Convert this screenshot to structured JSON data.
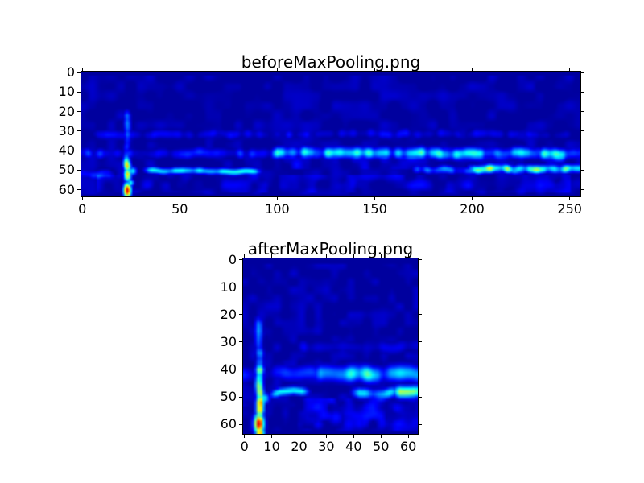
{
  "figure": {
    "background": "#ffffff",
    "text_color": "#000000",
    "spine_color": "#000000"
  },
  "colors": {
    "background_navy": "#000084",
    "feature_blue": "#0000ff",
    "hot_peak_red": "#d80000",
    "hot_ring_yellow": "#ffd200"
  },
  "chart_data": [
    {
      "type": "heatmap",
      "title": "beforeMaxPooling.png",
      "xlabel": "",
      "ylabel": "",
      "colormap": "jet",
      "grid": {
        "cols": 256,
        "rows": 64
      },
      "x_range": [
        0,
        255
      ],
      "y_range": [
        0,
        63
      ],
      "x_ticks": [
        0,
        50,
        100,
        150,
        200,
        250
      ],
      "y_ticks": [
        0,
        10,
        20,
        30,
        40,
        50,
        60
      ],
      "background_level": 0.03,
      "features": [
        {
          "kind": "speckle",
          "x0": 0,
          "x1": 255,
          "y0": 2,
          "y1": 62,
          "i": 0.05,
          "scale": 5,
          "seed": 101
        },
        {
          "kind": "hband",
          "y": 31.5,
          "x0": 4,
          "x1": 252,
          "i": 0.085,
          "sigma": 1.7,
          "noise": 0.7,
          "seed": 102
        },
        {
          "kind": "hband",
          "y": 41.2,
          "x0": 0,
          "x1": 255,
          "i": 0.13,
          "sigma": 1.8,
          "noise": 0.6,
          "seed": 103
        },
        {
          "kind": "hband",
          "y": 41.4,
          "x0": 96,
          "x1": 255,
          "i": 0.3,
          "sigma": 1.9,
          "noise": 0.55,
          "seed": 104
        },
        {
          "kind": "hband",
          "y": 50.6,
          "x0": 30,
          "x1": 93,
          "i": 0.3,
          "sigma": 1.15,
          "noise": 0.35,
          "seed": 105
        },
        {
          "kind": "hband",
          "y": 49.8,
          "x0": 168,
          "x1": 255,
          "i": 0.2,
          "sigma": 1.3,
          "noise": 0.5,
          "seed": 106
        },
        {
          "kind": "hband",
          "y": 49.6,
          "x0": 197,
          "x1": 255,
          "i": 0.42,
          "sigma": 1.4,
          "noise": 0.45,
          "seed": 107
        },
        {
          "kind": "hband",
          "y": 52.3,
          "x0": 0,
          "x1": 18,
          "i": 0.14,
          "sigma": 1.5,
          "noise": 0.4,
          "seed": 108
        },
        {
          "kind": "speckle",
          "x0": 8,
          "x1": 250,
          "y0": 53,
          "y1": 61,
          "i": 0.08,
          "scale": 5,
          "seed": 109
        },
        {
          "kind": "speckle",
          "x0": 100,
          "x1": 255,
          "y0": 44,
          "y1": 49,
          "i": 0.07,
          "scale": 5,
          "seed": 110
        },
        {
          "kind": "vstreak",
          "x": 23.1,
          "sigma": 1.25,
          "seed": 111,
          "segments": [
            {
              "y0": 18,
              "y1": 33,
              "i": 0.22
            },
            {
              "y0": 33,
              "y1": 44,
              "i": 0.17
            },
            {
              "y0": 44,
              "y1": 46,
              "i": 0.32
            },
            {
              "y0": 46,
              "y1": 56,
              "i": 0.52
            }
          ]
        },
        {
          "kind": "spot",
          "x": 23.1,
          "y": 27,
          "r": 1.8,
          "i": 0.1
        },
        {
          "kind": "spot",
          "x": 25.7,
          "y": 50.5,
          "r": 1.5,
          "i": 0.36
        },
        {
          "kind": "spot",
          "x": 24.8,
          "y": 56.5,
          "r": 1.2,
          "i": 0.4
        },
        {
          "kind": "blob",
          "x": 23.1,
          "y": 60.4,
          "rx": 1.35,
          "ry": 2.6,
          "i": 0.92
        }
      ]
    },
    {
      "type": "heatmap",
      "title": "afterMaxPooling.png",
      "xlabel": "",
      "ylabel": "",
      "colormap": "jet",
      "grid": {
        "cols": 64,
        "rows": 64
      },
      "x_range": [
        0,
        63
      ],
      "y_range": [
        0,
        63
      ],
      "x_ticks": [
        0,
        10,
        20,
        30,
        40,
        50,
        60
      ],
      "y_ticks": [
        0,
        10,
        20,
        30,
        40,
        50,
        60
      ],
      "background_level": 0.03,
      "features": [
        {
          "kind": "speckle",
          "x0": 0,
          "x1": 63,
          "y0": 2,
          "y1": 62,
          "i": 0.05,
          "scale": 3,
          "seed": 201
        },
        {
          "kind": "hband",
          "y": 31.8,
          "x0": 18,
          "x1": 63,
          "i": 0.09,
          "sigma": 1.6,
          "noise": 0.7,
          "seed": 202
        },
        {
          "kind": "hband",
          "y": 41.5,
          "x0": 0,
          "x1": 63,
          "i": 0.12,
          "sigma": 1.9,
          "noise": 0.6,
          "seed": 203
        },
        {
          "kind": "hband",
          "y": 41.8,
          "x0": 24,
          "x1": 63,
          "i": 0.33,
          "sigma": 2.0,
          "noise": 0.55,
          "seed": 204
        },
        {
          "kind": "path",
          "pts": [
            [
              9,
              49.8
            ],
            [
              13,
              48.2
            ],
            [
              18,
              47.6
            ],
            [
              24,
              48.4
            ]
          ],
          "i": 0.38,
          "sigma": 1.0,
          "seed": 205
        },
        {
          "kind": "hband",
          "y": 48.6,
          "x0": 38,
          "x1": 63,
          "i": 0.26,
          "sigma": 1.3,
          "noise": 0.5,
          "seed": 206
        },
        {
          "kind": "hband",
          "y": 48.2,
          "x0": 53,
          "x1": 63,
          "i": 0.42,
          "sigma": 1.5,
          "noise": 0.4,
          "seed": 207
        },
        {
          "kind": "speckle",
          "x0": 20,
          "x1": 63,
          "y0": 51,
          "y1": 62,
          "i": 0.1,
          "scale": 3,
          "seed": 208
        },
        {
          "kind": "spot",
          "x": 33.5,
          "y": 57.5,
          "r": 2.0,
          "i": 0.14
        },
        {
          "kind": "spot",
          "x": 27,
          "y": 60,
          "r": 1.5,
          "i": 0.12
        },
        {
          "kind": "spot",
          "x": 42,
          "y": 59.5,
          "r": 2.0,
          "i": 0.13
        },
        {
          "kind": "spot",
          "x": 50,
          "y": 57,
          "r": 1.5,
          "i": 0.11
        },
        {
          "kind": "hband",
          "y": 52.3,
          "x0": 0,
          "x1": 3,
          "i": 0.12,
          "sigma": 1.4,
          "noise": 0.3,
          "seed": 209
        },
        {
          "kind": "vstreak",
          "x": 5.3,
          "sigma": 1.0,
          "seed": 210,
          "segments": [
            {
              "y0": 19,
              "y1": 37,
              "i": 0.24
            },
            {
              "y0": 37,
              "y1": 40,
              "i": 0.32
            },
            {
              "y0": 40,
              "y1": 49,
              "i": 0.46
            },
            {
              "y0": 49,
              "y1": 57,
              "i": 0.6
            }
          ]
        },
        {
          "kind": "spot",
          "x": 5.3,
          "y": 27,
          "r": 1.6,
          "i": 0.12
        },
        {
          "kind": "spot",
          "x": 7.2,
          "y": 50.5,
          "r": 1.3,
          "i": 0.38
        },
        {
          "kind": "blob",
          "x": 5.3,
          "y": 59.8,
          "rx": 1.25,
          "ry": 2.5,
          "i": 0.93
        },
        {
          "kind": "blob",
          "x": 5.6,
          "y": 62.8,
          "rx": 1.1,
          "ry": 1.3,
          "i": 0.72
        }
      ]
    }
  ]
}
